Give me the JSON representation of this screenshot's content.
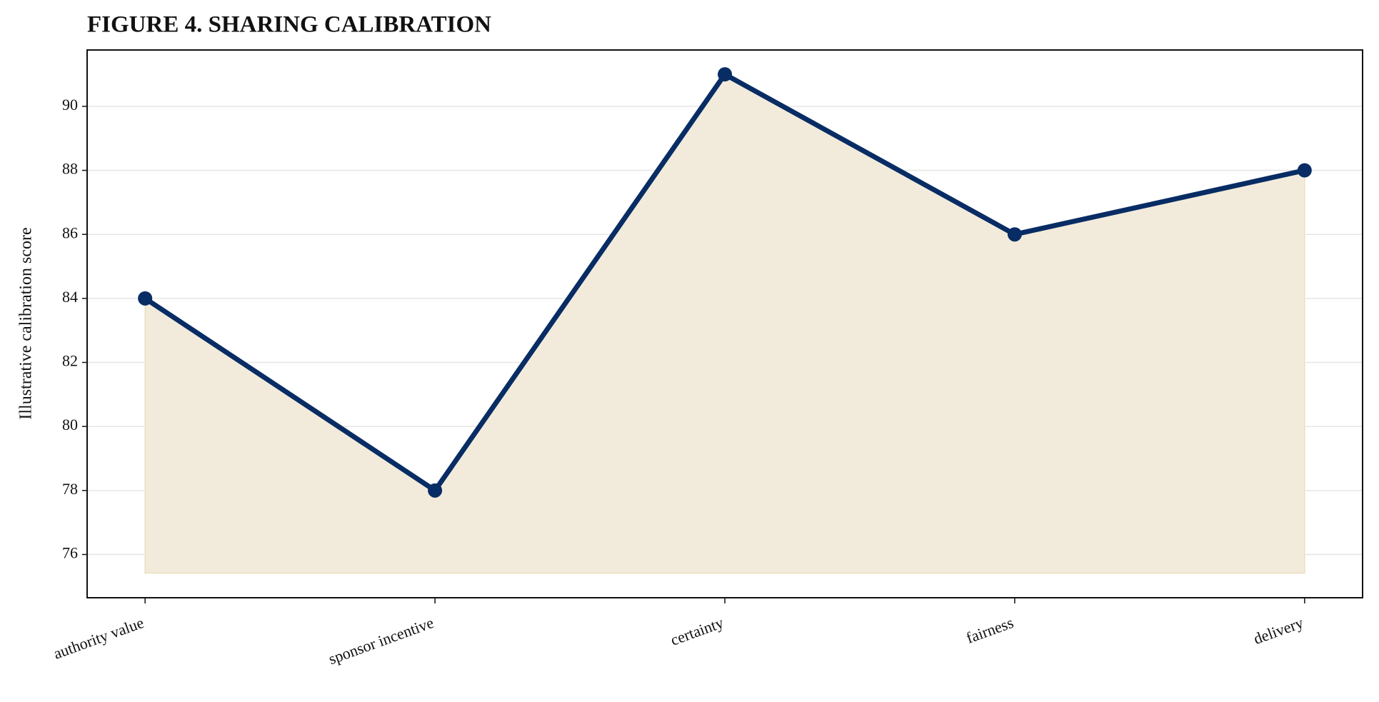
{
  "chart_data": {
    "type": "line",
    "title": "FIGURE 4. SHARING CALIBRATION",
    "y_label": "Illustrative calibration score",
    "categories": [
      "authority value",
      "sponsor incentive",
      "certainty",
      "fairness",
      "delivery"
    ],
    "series": [
      {
        "name": "Illustrative calibration score",
        "color": "#082c64",
        "fill_color": "#f2ebdc",
        "values": [
          84,
          78,
          91,
          86,
          88
        ]
      }
    ],
    "ylim": [
      74.65,
      91.76
    ],
    "yticks": [
      76,
      78,
      80,
      82,
      84,
      86,
      88,
      90
    ],
    "grid": true
  }
}
